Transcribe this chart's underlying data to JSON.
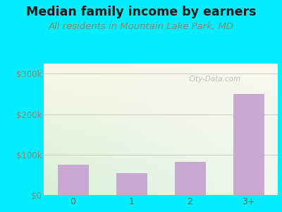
{
  "categories": [
    "0",
    "1",
    "2",
    "3+"
  ],
  "values": [
    75000,
    55000,
    82000,
    250000
  ],
  "bar_color": "#c9a8d4",
  "bar_edge_color": "#b8a0c8",
  "title": "Median family income by earners",
  "subtitle": "All residents in Mountain Lake Park, MD",
  "title_fontsize": 12.5,
  "subtitle_fontsize": 9.5,
  "title_color": "#1a1a1a",
  "subtitle_color": "#888866",
  "ylabel_ticks": [
    0,
    100000,
    200000,
    300000
  ],
  "ylabel_labels": [
    "$0",
    "$100k",
    "$200k",
    "$300k"
  ],
  "ylim": [
    0,
    325000
  ],
  "bg_outer": "#00eeff",
  "bg_plot_topleft": "#d8f0d8",
  "bg_plot_bottomright": "#f8f8ee",
  "watermark": "City-Data.com",
  "xlabel_color": "#666655",
  "tick_color": "#888877",
  "grid_color": "#ccccbb"
}
